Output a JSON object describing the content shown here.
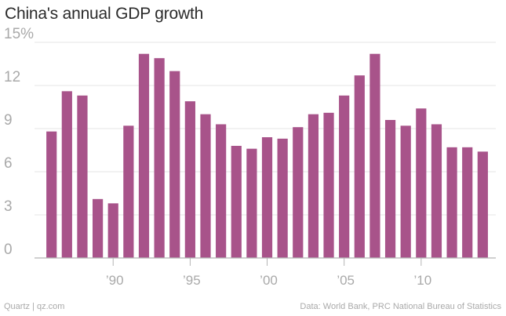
{
  "chart_data": {
    "type": "bar",
    "title": "China's annual GDP growth",
    "xlabel": "",
    "ylabel": "",
    "ylim": [
      0,
      15
    ],
    "y_ticks": [
      {
        "value": 0,
        "label": "0"
      },
      {
        "value": 3,
        "label": "3"
      },
      {
        "value": 6,
        "label": "6"
      },
      {
        "value": 9,
        "label": "9"
      },
      {
        "value": 12,
        "label": "12"
      },
      {
        "value": 15,
        "label": "15%"
      }
    ],
    "x_ticks": [
      {
        "year": 1990,
        "label": "’90"
      },
      {
        "year": 1995,
        "label": "’95"
      },
      {
        "year": 2000,
        "label": "’00"
      },
      {
        "year": 2005,
        "label": "’05"
      },
      {
        "year": 2010,
        "label": "’10"
      }
    ],
    "categories": [
      1986,
      1987,
      1988,
      1989,
      1990,
      1991,
      1992,
      1993,
      1994,
      1995,
      1996,
      1997,
      1998,
      1999,
      2000,
      2001,
      2002,
      2003,
      2004,
      2005,
      2006,
      2007,
      2008,
      2009,
      2010,
      2011,
      2012,
      2013,
      2014
    ],
    "values": [
      8.8,
      11.6,
      11.3,
      4.1,
      3.8,
      9.2,
      14.2,
      13.9,
      13.0,
      10.9,
      10.0,
      9.3,
      7.8,
      7.6,
      8.4,
      8.3,
      9.1,
      10.0,
      10.1,
      11.3,
      12.7,
      14.2,
      9.6,
      9.2,
      10.4,
      9.3,
      7.7,
      7.7,
      7.4
    ],
    "bar_color": "#a8538a",
    "grid": true,
    "legend": "none"
  },
  "footer": {
    "source_left": "Quartz | qz.com",
    "source_right": "Data: World Bank, PRC National Bureau of Statistics"
  }
}
